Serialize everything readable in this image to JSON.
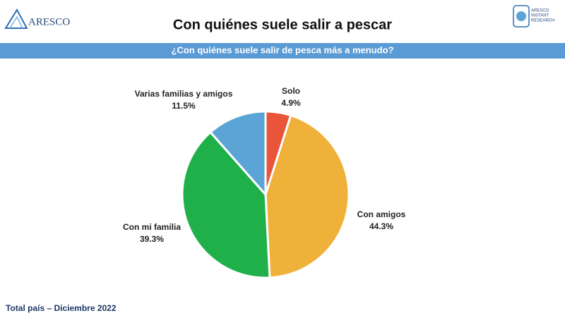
{
  "logos": {
    "left": {
      "text": "ARESCO"
    },
    "right": {
      "lines": [
        "ARESCO",
        "INSTANT",
        "RESEARCH"
      ]
    }
  },
  "chart_data": {
    "type": "pie",
    "title": "Con quiénes suele salir a pescar",
    "subtitle": "¿Con quiénes suele salir de pesca más a menudo?",
    "categories": [
      "Solo",
      "Con amigos",
      "Con mi familia",
      "Varias familias y amigos"
    ],
    "values": [
      4.9,
      44.3,
      39.3,
      11.5
    ],
    "value_labels": [
      "4.9%",
      "44.3%",
      "39.3%",
      "11.5%"
    ],
    "colors": [
      "#e8553a",
      "#f0b13a",
      "#1fb04a",
      "#5aa5d6"
    ],
    "note": "Total país – Diciembre 2022"
  }
}
